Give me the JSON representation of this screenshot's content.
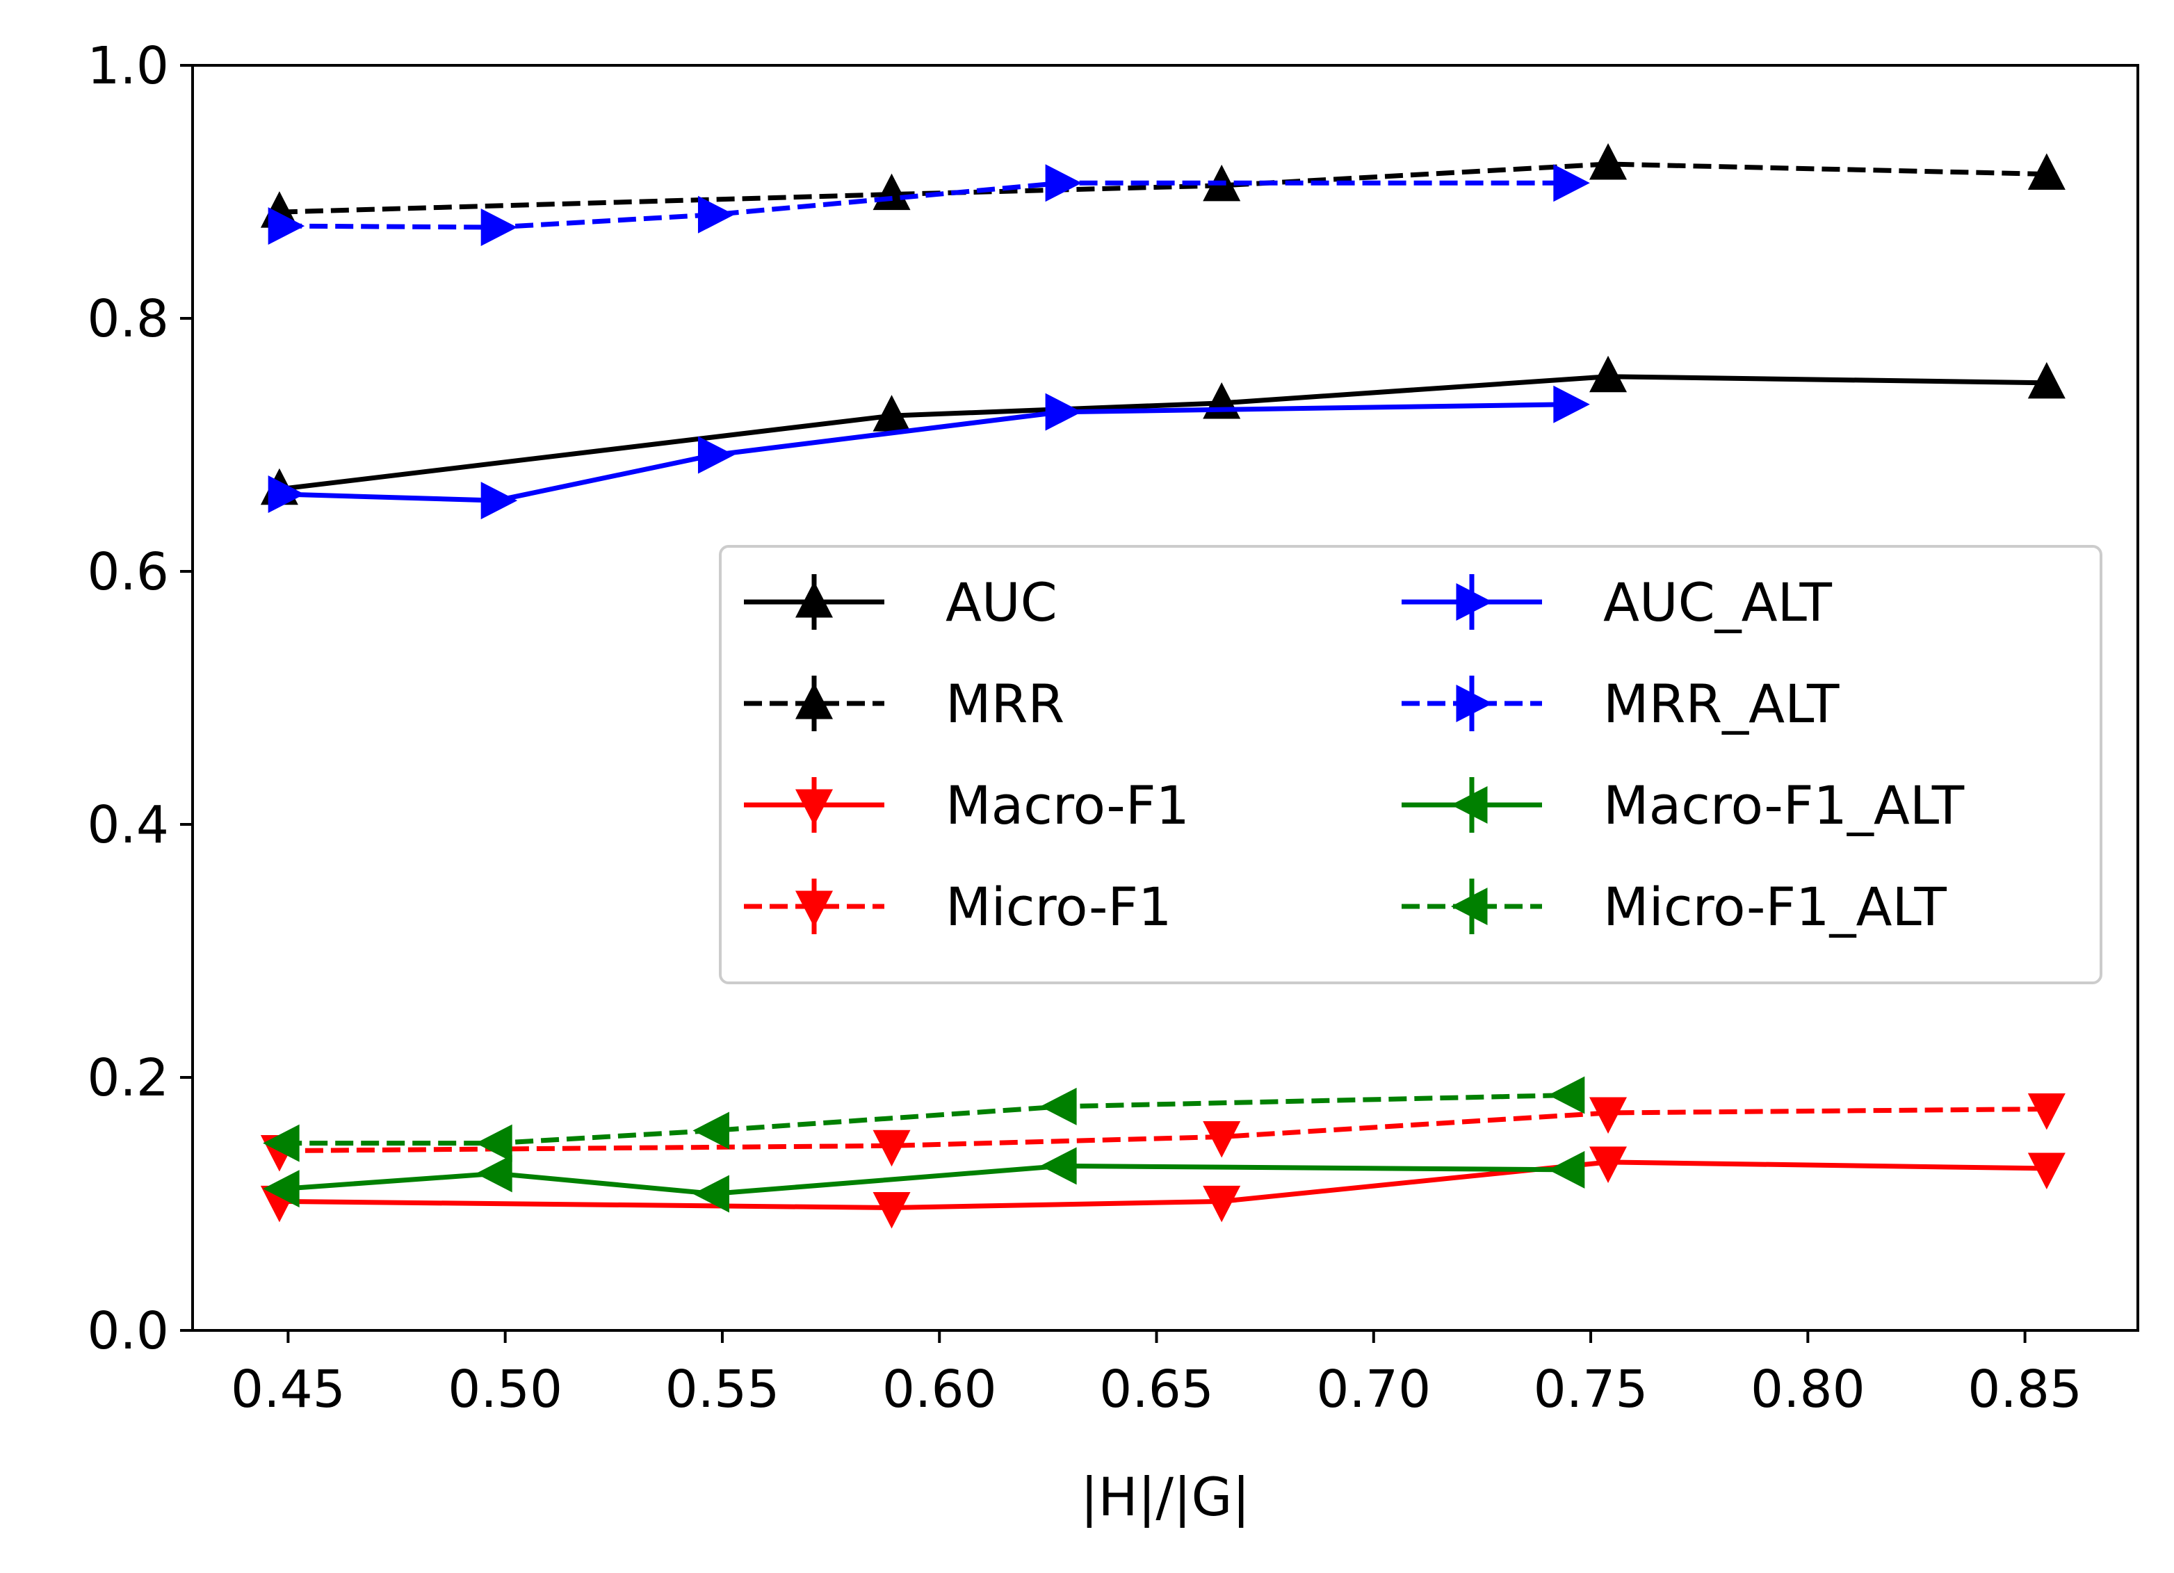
{
  "chart_data": {
    "type": "line",
    "title": "",
    "xlabel": "|H|/|G|",
    "ylabel": "",
    "xlim": [
      0.428,
      0.876
    ],
    "ylim": [
      0.0,
      1.0
    ],
    "xticks": [
      0.45,
      0.5,
      0.55,
      0.6,
      0.65,
      0.7,
      0.75,
      0.8,
      0.85
    ],
    "xtick_labels": [
      "0.45",
      "0.50",
      "0.55",
      "0.60",
      "0.65",
      "0.70",
      "0.75",
      "0.80",
      "0.85"
    ],
    "yticks": [
      0.0,
      0.2,
      0.4,
      0.6,
      0.8,
      1.0
    ],
    "ytick_labels": [
      "0.0",
      "0.2",
      "0.4",
      "0.6",
      "0.8",
      "1.0"
    ],
    "grid": false,
    "legend_position": "center-right",
    "legend_columns": 2,
    "series": [
      {
        "name": "AUC",
        "color": "#000000",
        "linestyle": "solid",
        "marker": "triangle-up",
        "x": [
          0.448,
          0.589,
          0.665,
          0.754,
          0.855
        ],
        "y": [
          0.665,
          0.723,
          0.733,
          0.754,
          0.749
        ]
      },
      {
        "name": "MRR",
        "color": "#000000",
        "linestyle": "dashed",
        "marker": "triangle-up",
        "x": [
          0.448,
          0.589,
          0.665,
          0.754,
          0.855
        ],
        "y": [
          0.884,
          0.898,
          0.905,
          0.922,
          0.914
        ]
      },
      {
        "name": "Macro-F1",
        "color": "#ff0000",
        "linestyle": "solid",
        "marker": "triangle-down",
        "x": [
          0.448,
          0.589,
          0.665,
          0.754,
          0.855
        ],
        "y": [
          0.102,
          0.097,
          0.102,
          0.133,
          0.128
        ]
      },
      {
        "name": "Micro-F1",
        "color": "#ff0000",
        "linestyle": "dashed",
        "marker": "triangle-down",
        "x": [
          0.448,
          0.589,
          0.665,
          0.754,
          0.855
        ],
        "y": [
          0.142,
          0.146,
          0.153,
          0.172,
          0.175
        ]
      },
      {
        "name": "AUC_ALT",
        "color": "#0000ff",
        "linestyle": "solid",
        "marker": "triangle-right",
        "x": [
          0.449,
          0.498,
          0.548,
          0.628,
          0.745
        ],
        "y": [
          0.661,
          0.656,
          0.692,
          0.726,
          0.732
        ]
      },
      {
        "name": "MRR_ALT",
        "color": "#0000ff",
        "linestyle": "dashed",
        "marker": "triangle-right",
        "x": [
          0.449,
          0.498,
          0.548,
          0.628,
          0.745
        ],
        "y": [
          0.873,
          0.872,
          0.882,
          0.907,
          0.907
        ]
      },
      {
        "name": "Macro-F1_ALT",
        "color": "#008000",
        "linestyle": "solid",
        "marker": "triangle-left",
        "x": [
          0.449,
          0.498,
          0.548,
          0.628,
          0.745
        ],
        "y": [
          0.112,
          0.124,
          0.108,
          0.13,
          0.127
        ]
      },
      {
        "name": "Micro-F1_ALT",
        "color": "#008000",
        "linestyle": "dashed",
        "marker": "triangle-left",
        "x": [
          0.449,
          0.498,
          0.548,
          0.628,
          0.745
        ],
        "y": [
          0.148,
          0.148,
          0.158,
          0.177,
          0.186
        ]
      }
    ]
  }
}
